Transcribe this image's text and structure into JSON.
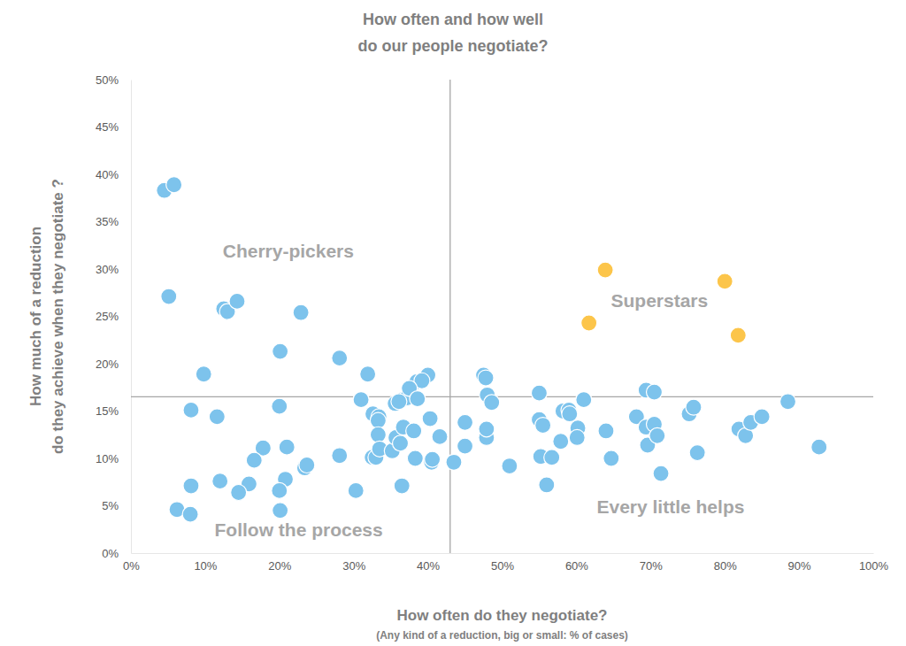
{
  "chart_data": {
    "type": "scatter",
    "title": [
      "How often and how well",
      "do our people negotiate?"
    ],
    "x_label": "How often do they negotiate?",
    "x_label_note": "(Any kind of a reduction, big or small: % of cases)",
    "y_label": [
      "How much of a reduction",
      "do they achieve when they negotiate ?"
    ],
    "xlim": [
      0,
      100
    ],
    "ylim": [
      0,
      50
    ],
    "xticks": [
      {
        "value": 0,
        "label": "0%"
      },
      {
        "value": 10,
        "label": "10%"
      },
      {
        "value": 20,
        "label": "20%"
      },
      {
        "value": 30,
        "label": "30%"
      },
      {
        "value": 40,
        "label": "40%"
      },
      {
        "value": 50,
        "label": "50%"
      },
      {
        "value": 60,
        "label": "60%"
      },
      {
        "value": 70,
        "label": "70%"
      },
      {
        "value": 80,
        "label": "80%"
      },
      {
        "value": 90,
        "label": "90%"
      },
      {
        "value": 100,
        "label": "100%"
      }
    ],
    "yticks": [
      {
        "value": 0,
        "label": "0%"
      },
      {
        "value": 5,
        "label": "5%"
      },
      {
        "value": 10,
        "label": "10%"
      },
      {
        "value": 15,
        "label": "15%"
      },
      {
        "value": 20,
        "label": "20%"
      },
      {
        "value": 25,
        "label": "25%"
      },
      {
        "value": 30,
        "label": "30%"
      },
      {
        "value": 35,
        "label": "35%"
      },
      {
        "value": 40,
        "label": "40%"
      },
      {
        "value": 45,
        "label": "45%"
      },
      {
        "value": 50,
        "label": "50%"
      }
    ],
    "grid": false,
    "reference_lines": [
      {
        "axis": "x",
        "value": 43
      },
      {
        "axis": "y",
        "value": 16.5
      }
    ],
    "annotations": [
      {
        "text": "Cherry-pickers",
        "x": 21.2,
        "y": 31.9
      },
      {
        "text": "Superstars",
        "x": 71.2,
        "y": 26.7
      },
      {
        "text": "Follow the process",
        "x": 22.6,
        "y": 2.5
      },
      {
        "text": "Every little helps",
        "x": 72.7,
        "y": 4.9
      }
    ],
    "series": [
      {
        "color": "#7dc3ec",
        "marker": "circle",
        "x": [
          4.5,
          5.8,
          5.1,
          12.5,
          13,
          14.3,
          22.9,
          20.1,
          28.1,
          9.8,
          31.9,
          38.5,
          40,
          39.2,
          47.5,
          47.8,
          8.1,
          11.6,
          20,
          31,
          32.6,
          33.4,
          33.3,
          35.6,
          36.6,
          37.2,
          37.5,
          38.6,
          36.1,
          40.3,
          33.3,
          32.5,
          33,
          33.5,
          35.2,
          35.7,
          36.3,
          36.7,
          38.1,
          38.3,
          40.5,
          40.6,
          41.6,
          36.5,
          30.3,
          28.1,
          23.4,
          23.7,
          21,
          20.8,
          17.8,
          16.6,
          15.9,
          14.5,
          12,
          8.1,
          6.2,
          8,
          20,
          20.1,
          43.5,
          45,
          45,
          47.9,
          47.9,
          48,
          48.6,
          51,
          55,
          55,
          55.5,
          55.2,
          56,
          56.7,
          57.9,
          58.2,
          59,
          59.1,
          60.2,
          60.1,
          61,
          64,
          64.7,
          68.1,
          69.4,
          70.5,
          69.4,
          70.5,
          69.6,
          70.9,
          71.4,
          75.2,
          75.8,
          76.3,
          81.9,
          82.8,
          83.5,
          85,
          88.5,
          92.7
        ],
        "values": [
          38.3,
          38.9,
          27.1,
          25.8,
          25.5,
          26.6,
          25.4,
          21.3,
          20.6,
          18.9,
          18.9,
          18.1,
          18.8,
          18.2,
          18.8,
          18.5,
          15.1,
          14.4,
          15.5,
          16.2,
          14.7,
          14.4,
          14,
          15.8,
          16.2,
          16.4,
          17.4,
          16.3,
          16,
          14.2,
          12.5,
          10.1,
          10.1,
          11,
          10.8,
          12.2,
          11.6,
          13.3,
          12.9,
          10,
          9.6,
          9.9,
          12.3,
          7.1,
          6.6,
          10.3,
          9,
          9.3,
          11.2,
          7.8,
          11.1,
          9.8,
          7.3,
          6.4,
          7.6,
          7.1,
          4.6,
          4.1,
          6.6,
          4.5,
          9.6,
          13.8,
          11.3,
          12.2,
          13.1,
          16.7,
          15.9,
          9.2,
          16.9,
          14.1,
          13.5,
          10.2,
          7.2,
          10.1,
          11.8,
          15,
          15.1,
          14.7,
          13.2,
          12.2,
          16.2,
          12.9,
          10,
          14.4,
          17.2,
          17,
          13.3,
          13.6,
          11.4,
          12.4,
          8.4,
          14.7,
          15.4,
          10.6,
          13.1,
          12.4,
          13.8,
          14.4,
          16,
          11.2
        ]
      },
      {
        "color": "#fcc54a",
        "marker": "circle",
        "x": [
          63.9,
          61.7,
          80,
          81.8
        ],
        "values": [
          29.9,
          24.3,
          28.7,
          23
        ]
      }
    ]
  }
}
